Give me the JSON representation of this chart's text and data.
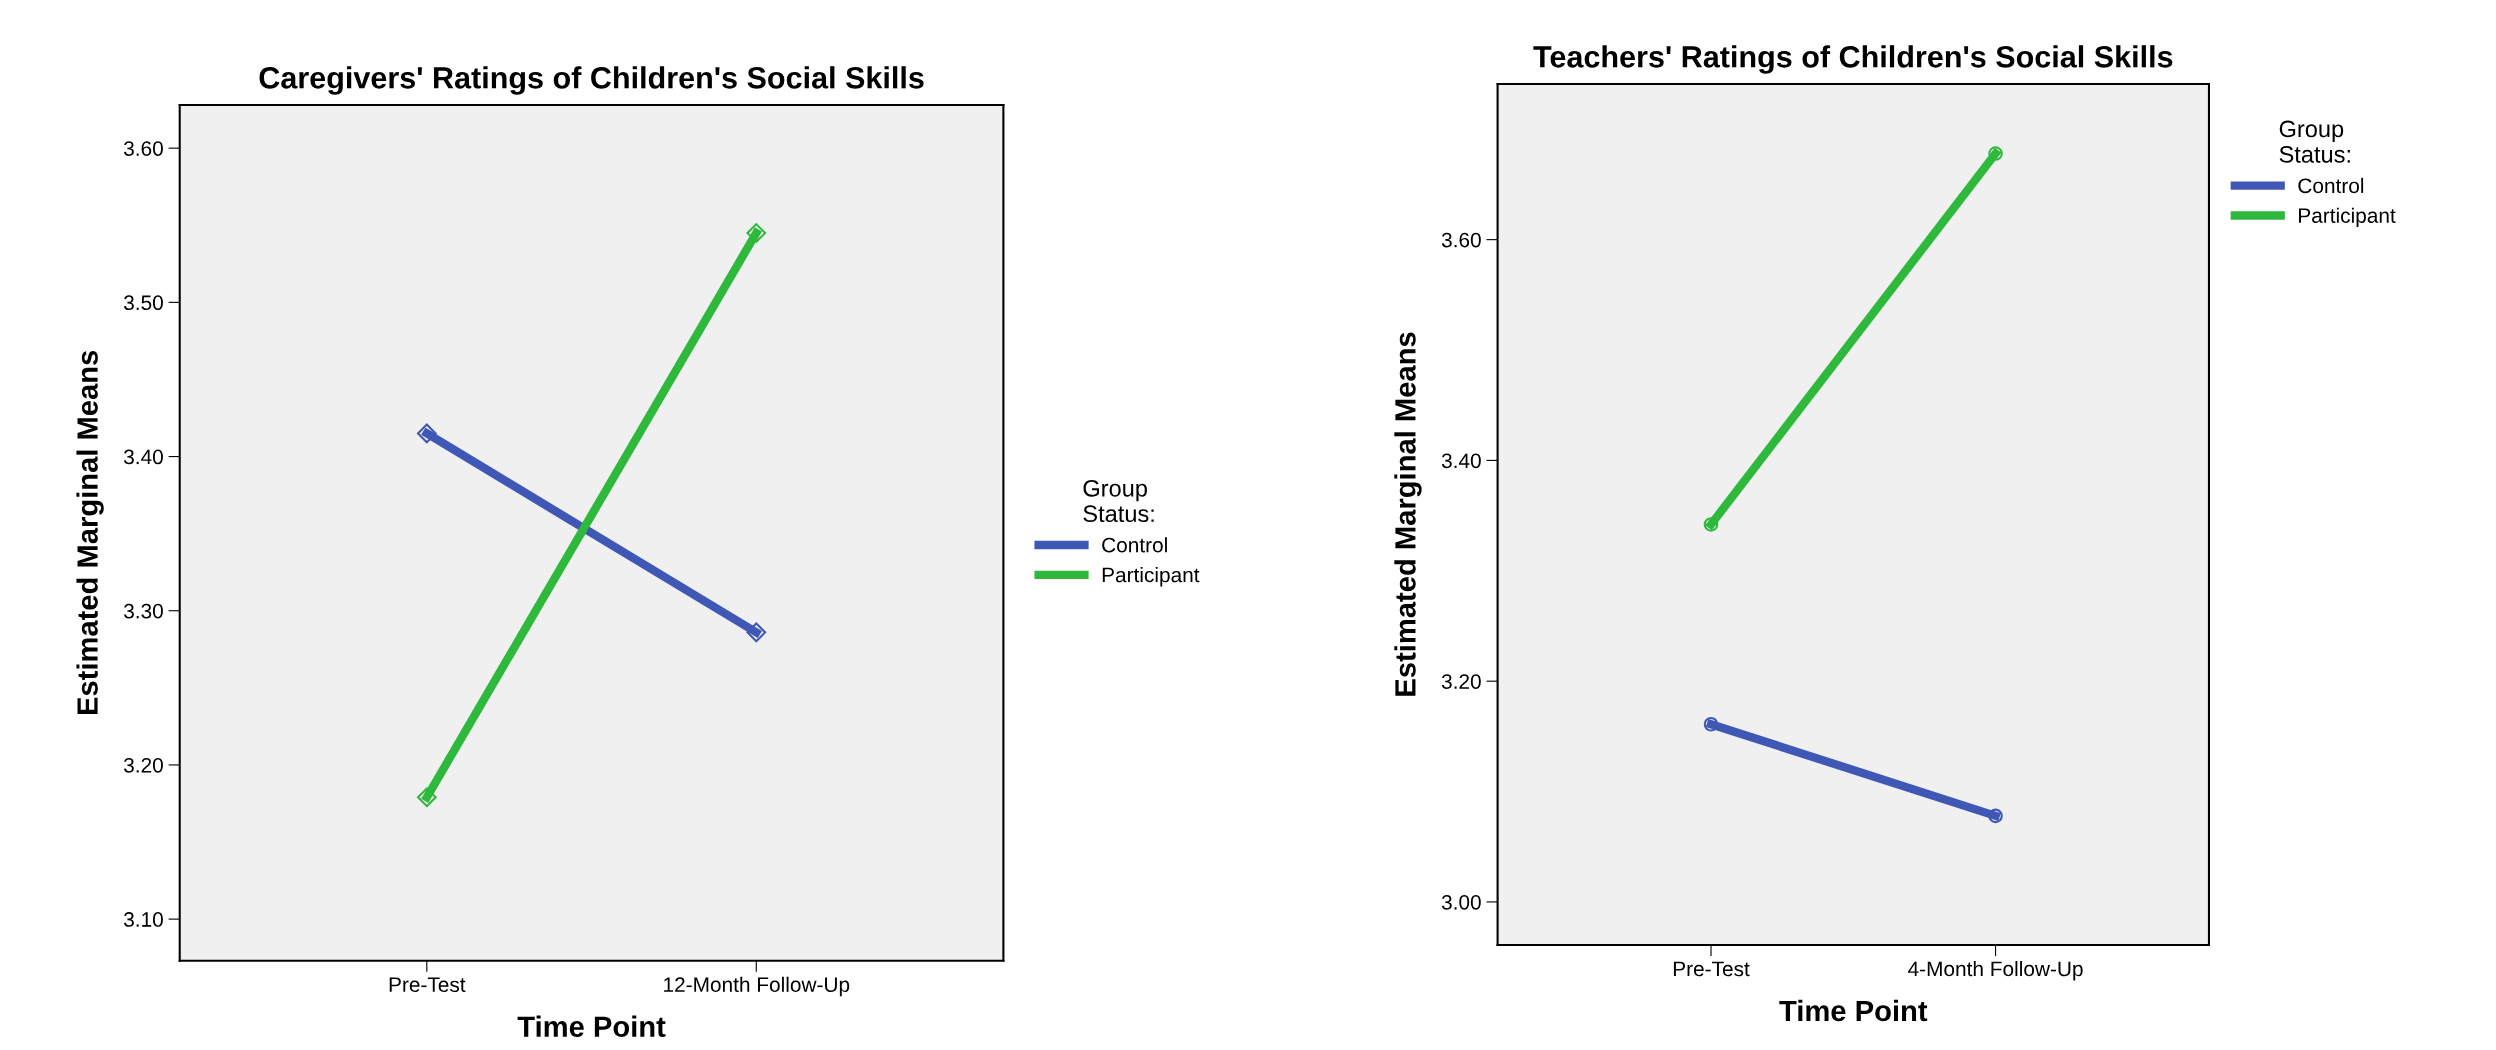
{
  "chart_data": [
    {
      "type": "line",
      "title": "Caregivers' Ratings of Children's Social Skills",
      "xlabel": "Time Point",
      "ylabel": "Estimated Marginal Means",
      "legend_title": "Group\nStatus:",
      "categories": [
        "Pre-Test",
        "12-Month Follow-Up"
      ],
      "series": [
        {
          "name": "Control",
          "color": "#3f57b5",
          "values": [
            3.415,
            3.286
          ]
        },
        {
          "name": "Participant",
          "color": "#2eb83c",
          "values": [
            3.179,
            3.545
          ]
        }
      ],
      "ylim": [
        3.073,
        3.628
      ],
      "yticks": [
        {
          "value": 3.1,
          "label": "3.10"
        },
        {
          "value": 3.2,
          "label": "3.20"
        },
        {
          "value": 3.3,
          "label": "3.30"
        },
        {
          "value": 3.4,
          "label": "3.40"
        },
        {
          "value": 3.5,
          "label": "3.50"
        },
        {
          "value": 3.6,
          "label": "3.60"
        }
      ],
      "legend": "right",
      "marker": "diamond",
      "line_style": "solid",
      "grid": false
    },
    {
      "type": "line",
      "title": "Teachers' Ratings of Children's Social Skills",
      "xlabel": "Time Point",
      "ylabel": "Estimated Marginal Means",
      "legend_title": "Group\nStatus:",
      "categories": [
        "Pre-Test",
        "4-Month Follow-Up"
      ],
      "series": [
        {
          "name": "Control",
          "color": "#3f57b5",
          "values": [
            3.161,
            3.078
          ]
        },
        {
          "name": "Participant",
          "color": "#2eb83c",
          "values": [
            3.342,
            3.678
          ]
        }
      ],
      "ylim": [
        2.961,
        3.741
      ],
      "yticks": [
        {
          "value": 3.0,
          "label": "3.00"
        },
        {
          "value": 3.2,
          "label": "3.20"
        },
        {
          "value": 3.4,
          "label": "3.40"
        },
        {
          "value": 3.6,
          "label": "3.60"
        }
      ],
      "legend": "top right",
      "marker": "circle",
      "line_style": "solid",
      "grid": false
    }
  ]
}
